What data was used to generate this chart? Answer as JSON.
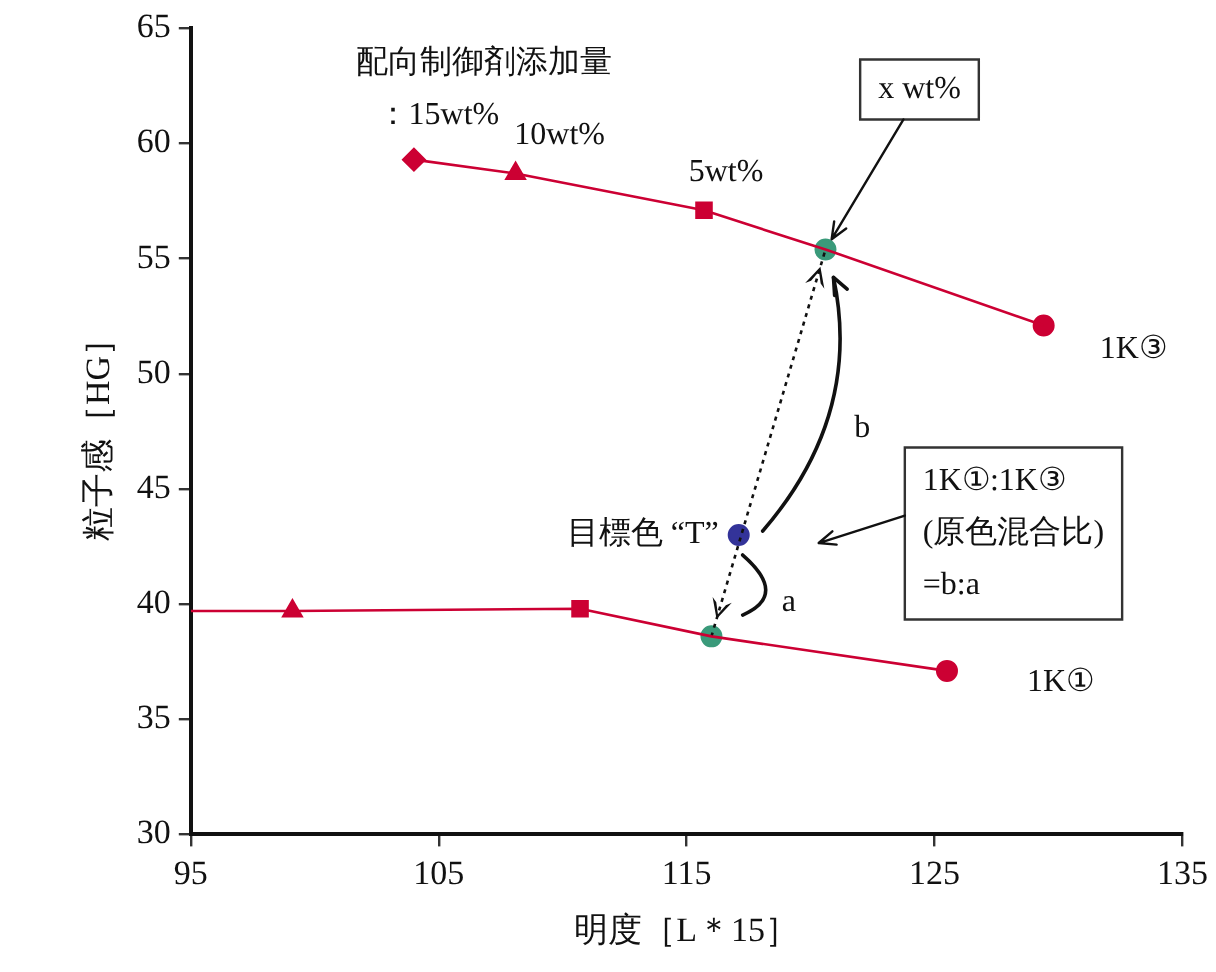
{
  "chart_data": {
    "type": "line",
    "xlabel": "明度［L＊15］",
    "ylabel": "粒子感［HG］",
    "xlim": [
      95,
      135
    ],
    "xticks": [
      95,
      105,
      115,
      125,
      135
    ],
    "ylim": [
      30,
      65
    ],
    "yticks": [
      30,
      35,
      40,
      45,
      50,
      55,
      60,
      65
    ],
    "grid": false,
    "legend": false,
    "series": [
      {
        "type": "line",
        "color": "#cc0033",
        "marker": "none",
        "x": [
          104,
          108.1,
          115.7,
          120.6,
          129.4
        ],
        "values": [
          59.3,
          58.7,
          57.1,
          55.4,
          52.1
        ]
      },
      {
        "type": "line",
        "color": "#cc0033",
        "marker": "none",
        "x": [
          95,
          99.1,
          110.7,
          116,
          125.5
        ],
        "values": [
          39.7,
          39.7,
          39.8,
          38.6,
          37.1
        ]
      },
      {
        "type": "line",
        "color": "#111111",
        "marker": "none",
        "line_style": "dotted",
        "x": [
          116,
          120.6
        ],
        "values": [
          38.6,
          55.4
        ]
      },
      {
        "type": "scatter",
        "color": "#cc0033",
        "marker": "diamond",
        "x": [
          104
        ],
        "values": [
          59.3
        ]
      },
      {
        "type": "scatter",
        "color": "#cc0033",
        "marker": "triangle",
        "x": [
          108.1,
          99.1
        ],
        "values": [
          58.7,
          39.7
        ]
      },
      {
        "type": "scatter",
        "color": "#cc0033",
        "marker": "square",
        "x": [
          115.7,
          110.7
        ],
        "values": [
          57.1,
          39.8
        ]
      },
      {
        "type": "scatter",
        "color": "#3a9a7a",
        "marker": "circle",
        "x": [
          120.6,
          116
        ],
        "values": [
          55.4,
          38.6
        ]
      },
      {
        "type": "scatter",
        "color": "#cc0033",
        "marker": "circle",
        "x": [
          129.4,
          125.5
        ],
        "values": [
          52.1,
          37.1
        ]
      },
      {
        "type": "scatter",
        "color": "#333399",
        "marker": "circle",
        "x": [
          117.1
        ],
        "values": [
          43.0
        ]
      }
    ],
    "annotations": [
      {
        "text": "配向制御剤添加量",
        "x": 104,
        "y": 59.3
      },
      {
        "text": "：15wt%",
        "x": 104,
        "y": 59.3
      },
      {
        "text": "10wt%",
        "x": 108.1,
        "y": 58.7
      },
      {
        "text": "5wt%",
        "x": 115.7,
        "y": 57.1
      },
      {
        "text": "x wt%",
        "x": 120.6,
        "y": 55.4
      },
      {
        "text": "1K③",
        "x": 129.4,
        "y": 52.1
      },
      {
        "text": "1K①",
        "x": 125.5,
        "y": 37.1
      },
      {
        "text": "目標色 “T”",
        "x": 117.1,
        "y": 43.0
      },
      "b",
      "a",
      "1K①:1K③\n(原色混合比)\n=b:a"
    ]
  }
}
